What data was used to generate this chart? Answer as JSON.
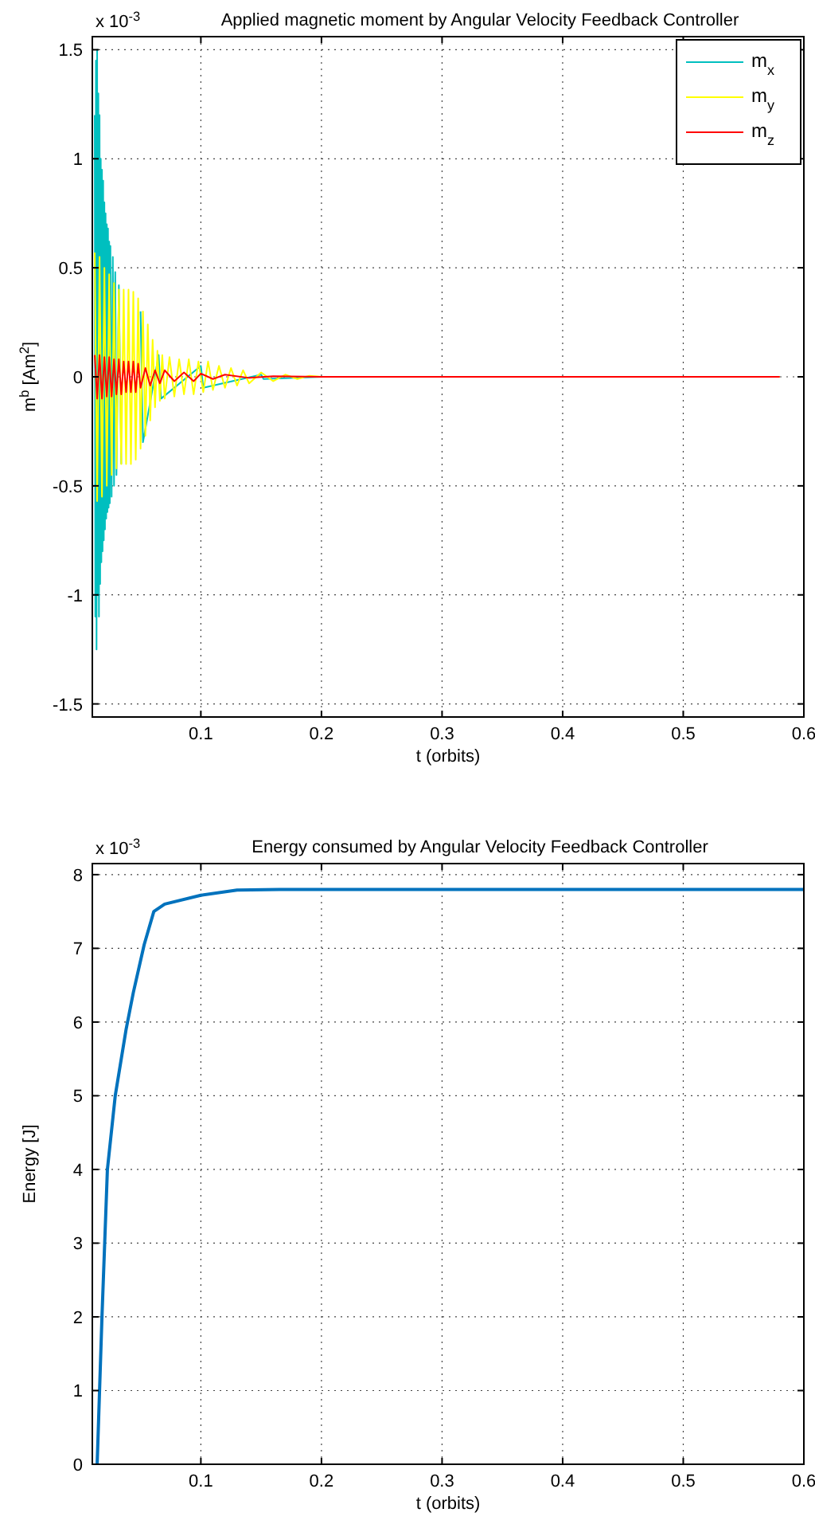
{
  "chart_data": [
    {
      "type": "line",
      "title": "Applied magnetic moment by Angular Velocity Feedback Controller",
      "xlabel": "t (orbits)",
      "ylabel": "m$^{b}$ [Am$^{2}$]",
      "annotations": [
        "x 10$^{-3}$"
      ],
      "xlim": [
        0.01,
        0.6
      ],
      "ylim": [
        -1.56,
        1.56
      ],
      "xticks": [
        0.1,
        0.2,
        0.3,
        0.4,
        0.5,
        0.6
      ],
      "yticks": [
        -1.5,
        -1,
        -0.5,
        0,
        0.5,
        1,
        1.5
      ],
      "grid": true,
      "legend": "top right",
      "line_style": "solid",
      "series": [
        {
          "name": "m$_{x}$",
          "color": "#00bfbf",
          "x": [
            0.012,
            0.0125,
            0.013,
            0.0135,
            0.014,
            0.0145,
            0.015,
            0.0155,
            0.016,
            0.0165,
            0.017,
            0.0175,
            0.018,
            0.0185,
            0.019,
            0.0195,
            0.02,
            0.0205,
            0.021,
            0.0215,
            0.022,
            0.0225,
            0.023,
            0.0235,
            0.024,
            0.0245,
            0.025,
            0.026,
            0.027,
            0.028,
            0.029,
            0.03,
            0.032,
            0.034,
            0.04,
            0.042,
            0.05,
            0.052,
            0.065,
            0.067,
            0.1,
            0.102,
            0.15,
            0.152,
            0.2,
            0.58
          ],
          "values": [
            1.2,
            -1.1,
            1.45,
            -1.25,
            1.5,
            -1.0,
            1.3,
            -1.1,
            1.2,
            -0.95,
            1.0,
            -0.85,
            0.95,
            -0.8,
            0.9,
            -0.75,
            0.8,
            -0.7,
            0.75,
            -0.65,
            0.7,
            -0.62,
            0.68,
            -0.6,
            0.62,
            -0.58,
            0.6,
            -0.55,
            0.55,
            -0.5,
            0.48,
            -0.45,
            0.42,
            -0.4,
            null,
            null,
            0.3,
            -0.3,
            0.1,
            -0.1,
            0.05,
            -0.05,
            0.01,
            -0.01,
            0,
            0
          ]
        },
        {
          "name": "m$_{y}$",
          "color": "#ffff00",
          "x": [
            0.012,
            0.014,
            0.016,
            0.018,
            0.02,
            0.022,
            0.024,
            0.026,
            0.028,
            0.03,
            0.032,
            0.034,
            0.036,
            0.038,
            0.04,
            0.042,
            0.044,
            0.046,
            0.048,
            0.05,
            0.052,
            0.054,
            0.056,
            0.058,
            0.06,
            0.062,
            0.064,
            0.066,
            0.068,
            0.07,
            0.074,
            0.078,
            0.082,
            0.086,
            0.09,
            0.094,
            0.098,
            0.102,
            0.106,
            0.11,
            0.115,
            0.12,
            0.125,
            0.13,
            0.135,
            0.14,
            0.15,
            0.16,
            0.17,
            0.18,
            0.19,
            0.2,
            0.58
          ],
          "values": [
            0.57,
            -0.57,
            0.55,
            -0.55,
            0.5,
            -0.5,
            0.47,
            -0.45,
            0.43,
            -0.42,
            0.4,
            -0.4,
            0.4,
            -0.4,
            0.4,
            -0.4,
            0.39,
            -0.38,
            0.36,
            -0.33,
            0.3,
            -0.27,
            0.24,
            -0.2,
            0.17,
            -0.14,
            0.12,
            -0.11,
            0.1,
            -0.1,
            0.09,
            -0.09,
            0.08,
            -0.08,
            0.08,
            -0.08,
            0.07,
            -0.07,
            0.07,
            -0.06,
            0.05,
            -0.05,
            0.04,
            -0.04,
            0.03,
            -0.03,
            0.02,
            -0.02,
            0.01,
            -0.01,
            0.005,
            0,
            0
          ]
        },
        {
          "name": "m$_{z}$",
          "color": "#ff0000",
          "x": [
            0.012,
            0.014,
            0.016,
            0.018,
            0.02,
            0.022,
            0.024,
            0.026,
            0.028,
            0.03,
            0.032,
            0.034,
            0.036,
            0.038,
            0.04,
            0.042,
            0.044,
            0.046,
            0.048,
            0.05,
            0.054,
            0.058,
            0.062,
            0.066,
            0.07,
            0.078,
            0.086,
            0.094,
            0.1,
            0.11,
            0.12,
            0.14,
            0.16,
            0.2,
            0.58
          ],
          "values": [
            0.1,
            -0.1,
            0.1,
            -0.1,
            0.09,
            -0.09,
            0.09,
            -0.09,
            0.08,
            -0.08,
            0.08,
            -0.08,
            0.07,
            -0.07,
            0.07,
            -0.07,
            0.07,
            -0.07,
            0.06,
            -0.05,
            0.04,
            -0.04,
            0.03,
            -0.03,
            0.03,
            -0.02,
            0.02,
            -0.02,
            0.015,
            -0.01,
            0.01,
            -0.005,
            0.003,
            0,
            0
          ]
        }
      ]
    },
    {
      "type": "line",
      "title": "Energy consumed by Angular Velocity Feedback Controller",
      "xlabel": "t (orbits)",
      "ylabel": "Energy [J]",
      "annotations": [
        "x 10$^{-3}$"
      ],
      "xlim": [
        0.01,
        0.6
      ],
      "ylim": [
        0,
        8.15
      ],
      "xticks": [
        0.1,
        0.2,
        0.3,
        0.4,
        0.5,
        0.6
      ],
      "yticks": [
        0,
        1,
        2,
        3,
        4,
        5,
        6,
        7,
        8
      ],
      "grid": true,
      "line_style": "solid",
      "series": [
        {
          "color": "#0072bd",
          "x": [
            0.014,
            0.018,
            0.0225,
            0.029,
            0.038,
            0.044,
            0.053,
            0.061,
            0.07,
            0.1,
            0.13,
            0.165,
            0.6
          ],
          "values": [
            0,
            2,
            4,
            5,
            5.9,
            6.4,
            7.05,
            7.5,
            7.6,
            7.72,
            7.79,
            7.8,
            7.8
          ]
        }
      ]
    }
  ]
}
